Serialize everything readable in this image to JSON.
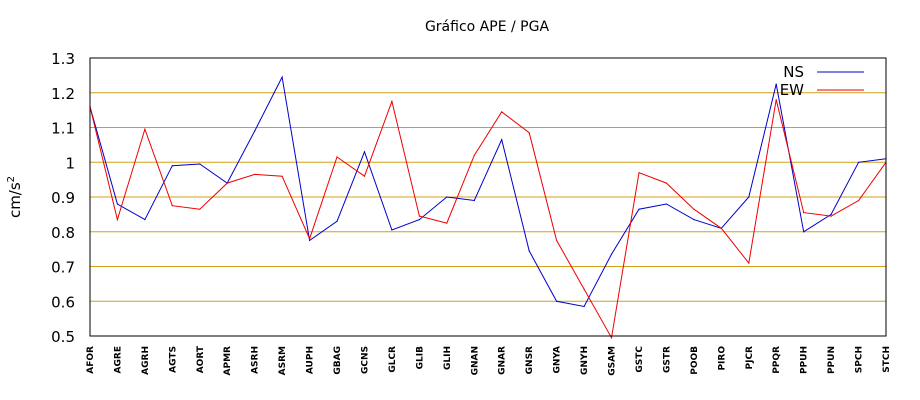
{
  "chart_data": {
    "type": "line",
    "title": "Gráfico  APE / PGA",
    "xlabel": "",
    "ylabel": "cm/s",
    "ylabel_superscript": "2",
    "ylim": [
      0.5,
      1.3
    ],
    "yticks": [
      "0.5",
      "0.6",
      "0.7",
      "0.8",
      "0.9",
      "1",
      "1.1",
      "1.2",
      "1.3"
    ],
    "grid": "horizontal",
    "legend_position": "top-right",
    "categories": [
      "AFOR",
      "AGRE",
      "AGRH",
      "AGTS",
      "AORT",
      "APMR",
      "ASRH",
      "ASRM",
      "AUPH",
      "GBAG",
      "GCNS",
      "GLCR",
      "GLIB",
      "GLIH",
      "GNAN",
      "GNAR",
      "GNSR",
      "GNYA",
      "GNYH",
      "GSAM",
      "GSTC",
      "GSTR",
      "POOB",
      "PIRO",
      "PJCR",
      "PPQR",
      "PPUH",
      "PPUN",
      "SPCH",
      "STCH"
    ],
    "series": [
      {
        "name": "NS",
        "color": "#0000cc",
        "values": [
          1.16,
          0.88,
          0.835,
          0.99,
          0.995,
          0.94,
          1.09,
          1.245,
          0.775,
          0.83,
          1.03,
          0.805,
          0.835,
          0.9,
          0.89,
          1.065,
          0.745,
          0.6,
          0.585,
          0.735,
          0.865,
          0.88,
          0.835,
          0.81,
          0.9,
          1.225,
          0.8,
          0.85,
          1.0,
          1.01
        ]
      },
      {
        "name": "EW",
        "color": "#ee0000",
        "values": [
          1.16,
          0.835,
          1.095,
          0.875,
          0.865,
          0.94,
          0.965,
          0.96,
          0.78,
          1.015,
          0.96,
          1.175,
          0.845,
          0.825,
          1.02,
          1.145,
          1.085,
          0.775,
          0.635,
          0.495,
          0.97,
          0.94,
          0.865,
          0.81,
          0.71,
          1.18,
          0.855,
          0.845,
          0.89,
          1.0
        ]
      }
    ],
    "colors": {
      "gridline": "#d4a017",
      "frame": "#000000"
    }
  }
}
